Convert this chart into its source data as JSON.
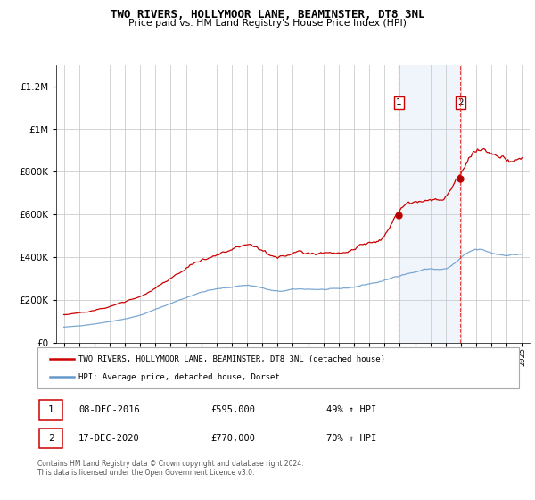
{
  "title": "TWO RIVERS, HOLLYMOOR LANE, BEAMINSTER, DT8 3NL",
  "subtitle": "Price paid vs. HM Land Registry's House Price Index (HPI)",
  "legend_line1": "TWO RIVERS, HOLLYMOOR LANE, BEAMINSTER, DT8 3NL (detached house)",
  "legend_line2": "HPI: Average price, detached house, Dorset",
  "transaction1_date": "08-DEC-2016",
  "transaction1_price": "£595,000",
  "transaction1_hpi": "49% ↑ HPI",
  "transaction2_date": "17-DEC-2020",
  "transaction2_price": "£770,000",
  "transaction2_hpi": "70% ↑ HPI",
  "footer": "Contains HM Land Registry data © Crown copyright and database right 2024.\nThis data is licensed under the Open Government Licence v3.0.",
  "house_color": "#cc0000",
  "hpi_color": "#6699cc",
  "vline_color": "#dd3333",
  "shade_color": "#ddeeff",
  "transaction1_x": 2016.94,
  "transaction2_x": 2020.96,
  "transaction1_y": 595000,
  "transaction2_y": 770000,
  "ylim": [
    0,
    1300000
  ],
  "xlim": [
    1994.5,
    2025.5
  ],
  "yticks": [
    0,
    200000,
    400000,
    600000,
    800000,
    1000000,
    1200000
  ]
}
